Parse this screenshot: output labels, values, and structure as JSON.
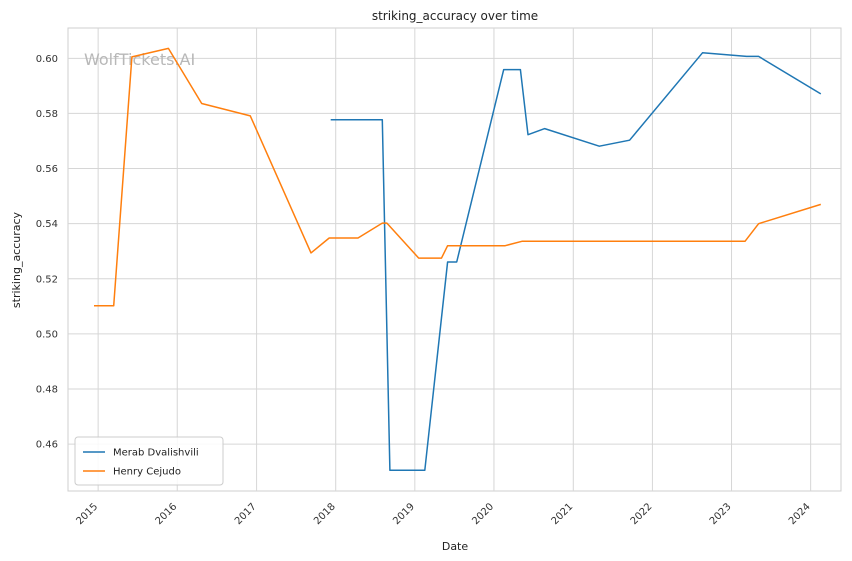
{
  "chart_data": {
    "type": "line",
    "title": "striking_accuracy over time",
    "xlabel": "Date",
    "ylabel": "striking_accuracy",
    "watermark": "WolfTickets.AI",
    "x_type": "date",
    "xlim": [
      "2014-08-15",
      "2024-05-20"
    ],
    "ylim": [
      0.443,
      0.611
    ],
    "x_ticks": [
      "2015",
      "2016",
      "2017",
      "2018",
      "2019",
      "2020",
      "2021",
      "2022",
      "2023",
      "2024"
    ],
    "y_ticks": [
      "0.46",
      "0.48",
      "0.50",
      "0.52",
      "0.54",
      "0.56",
      "0.58",
      "0.60"
    ],
    "grid": true,
    "legend_position": "lower-left",
    "series": [
      {
        "name": "Merab Dvalishvili",
        "color": "#1f77b4",
        "points": [
          [
            "2017-12-09",
            0.5777
          ],
          [
            "2018-08-04",
            0.5777
          ],
          [
            "2018-09-08",
            0.4505
          ],
          [
            "2019-02-16",
            0.4505
          ],
          [
            "2019-06-01",
            0.5261
          ],
          [
            "2019-07-13",
            0.5261
          ],
          [
            "2020-02-15",
            0.5959
          ],
          [
            "2020-05-02",
            0.5959
          ],
          [
            "2020-06-06",
            0.5723
          ],
          [
            "2020-08-22",
            0.5745
          ],
          [
            "2021-05-01",
            0.5681
          ],
          [
            "2021-09-18",
            0.5703
          ],
          [
            "2022-08-20",
            0.602
          ],
          [
            "2023-03-11",
            0.6007
          ],
          [
            "2023-05-06",
            0.6007
          ],
          [
            "2024-02-17",
            0.5871
          ]
        ]
      },
      {
        "name": "Henry Cejudo",
        "color": "#ff7f0e",
        "points": [
          [
            "2014-12-13",
            0.5102
          ],
          [
            "2015-03-14",
            0.5102
          ],
          [
            "2015-06-06",
            0.6005
          ],
          [
            "2015-11-21",
            0.6036
          ],
          [
            "2016-04-23",
            0.5836
          ],
          [
            "2016-12-03",
            0.5791
          ],
          [
            "2017-09-09",
            0.5294
          ],
          [
            "2017-12-02",
            0.5348
          ],
          [
            "2018-04-14",
            0.5348
          ],
          [
            "2018-08-04",
            0.5402
          ],
          [
            "2018-08-25",
            0.5402
          ],
          [
            "2019-01-19",
            0.5275
          ],
          [
            "2019-05-04",
            0.5275
          ],
          [
            "2019-06-01",
            0.532
          ],
          [
            "2020-02-22",
            0.532
          ],
          [
            "2020-05-09",
            0.5336
          ],
          [
            "2023-03-04",
            0.5336
          ],
          [
            "2023-05-06",
            0.54
          ],
          [
            "2024-02-17",
            0.547
          ]
        ]
      }
    ]
  }
}
